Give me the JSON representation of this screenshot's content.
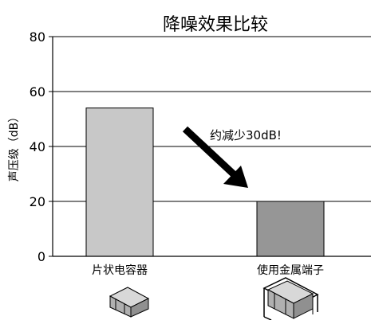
{
  "chart_data": {
    "type": "bar",
    "title": "降噪效果比较",
    "ylabel": "声压级（dB）",
    "xlabel": "",
    "ylim": [
      0,
      80
    ],
    "yticks": [
      0,
      20,
      40,
      60,
      80
    ],
    "grid": true,
    "categories": [
      "片状电容器",
      "使用金属端子"
    ],
    "values": [
      54,
      20
    ],
    "bar_colors": [
      "#c8c8c8",
      "#969696"
    ],
    "annotation": "约减少30dB!",
    "annotation_arrow": {
      "from": "片状电容器",
      "to": "使用金属端子"
    }
  }
}
